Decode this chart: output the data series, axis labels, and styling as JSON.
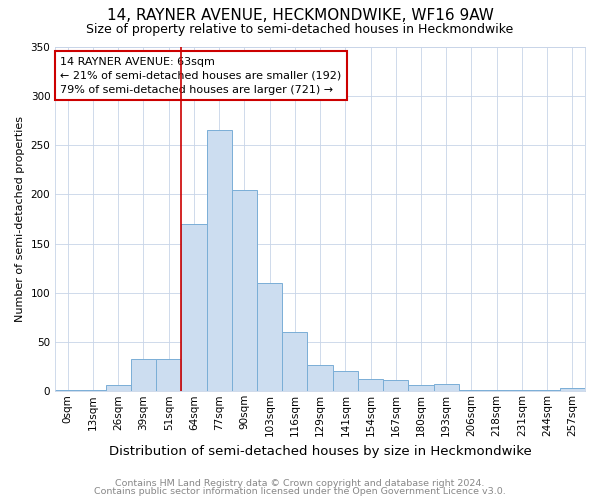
{
  "title1": "14, RAYNER AVENUE, HECKMONDWIKE, WF16 9AW",
  "title2": "Size of property relative to semi-detached houses in Heckmondwike",
  "xlabel": "Distribution of semi-detached houses by size in Heckmondwike",
  "ylabel": "Number of semi-detached properties",
  "footer1": "Contains HM Land Registry data © Crown copyright and database right 2024.",
  "footer2": "Contains public sector information licensed under the Open Government Licence v3.0.",
  "annotation_title": "14 RAYNER AVENUE: 63sqm",
  "annotation_line1": "← 21% of semi-detached houses are smaller (192)",
  "annotation_line2": "79% of semi-detached houses are larger (721) →",
  "categories": [
    "0sqm",
    "13sqm",
    "26sqm",
    "39sqm",
    "51sqm",
    "64sqm",
    "77sqm",
    "90sqm",
    "103sqm",
    "116sqm",
    "129sqm",
    "141sqm",
    "154sqm",
    "167sqm",
    "180sqm",
    "193sqm",
    "206sqm",
    "218sqm",
    "231sqm",
    "244sqm",
    "257sqm"
  ],
  "values": [
    1,
    1,
    6,
    33,
    33,
    170,
    265,
    204,
    110,
    60,
    27,
    21,
    12,
    11,
    6,
    7,
    1,
    1,
    1,
    1,
    3
  ],
  "bar_color": "#ccddf0",
  "bar_edge_color": "#7aaed6",
  "red_line_x": 5,
  "ylim": [
    0,
    350
  ],
  "yticks": [
    0,
    50,
    100,
    150,
    200,
    250,
    300,
    350
  ],
  "background_color": "#ffffff",
  "grid_color": "#c8d4e8",
  "annotation_box_color": "#ffffff",
  "annotation_box_edge": "#cc0000",
  "title1_fontsize": 11,
  "title2_fontsize": 9,
  "xlabel_fontsize": 9.5,
  "ylabel_fontsize": 8,
  "tick_fontsize": 7.5,
  "annotation_fontsize": 8,
  "footer_fontsize": 6.8
}
